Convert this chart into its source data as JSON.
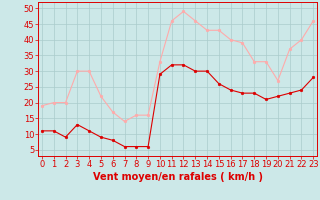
{
  "x": [
    0,
    1,
    2,
    3,
    4,
    5,
    6,
    7,
    8,
    9,
    10,
    11,
    12,
    13,
    14,
    15,
    16,
    17,
    18,
    19,
    20,
    21,
    22,
    23
  ],
  "wind_avg": [
    11,
    11,
    9,
    13,
    11,
    9,
    8,
    6,
    6,
    6,
    29,
    32,
    32,
    30,
    30,
    26,
    24,
    23,
    23,
    21,
    22,
    23,
    24,
    28
  ],
  "wind_gust": [
    19,
    20,
    20,
    30,
    30,
    22,
    17,
    14,
    16,
    16,
    33,
    46,
    49,
    46,
    43,
    43,
    40,
    39,
    33,
    33,
    27,
    37,
    40,
    46
  ],
  "bg_color": "#cce8e8",
  "grid_color": "#aacccc",
  "line_avg_color": "#dd0000",
  "line_gust_color": "#ffaaaa",
  "xlabel": "Vent moyen/en rafales ( km/h )",
  "xlabel_color": "#dd0000",
  "xlabel_fontsize": 7,
  "ylabel_ticks": [
    5,
    10,
    15,
    20,
    25,
    30,
    35,
    40,
    45,
    50
  ],
  "xlim": [
    -0.3,
    23.3
  ],
  "ylim": [
    3,
    52
  ],
  "tick_color": "#dd0000",
  "tick_fontsize": 6,
  "marker_size": 2,
  "line_width": 0.8
}
